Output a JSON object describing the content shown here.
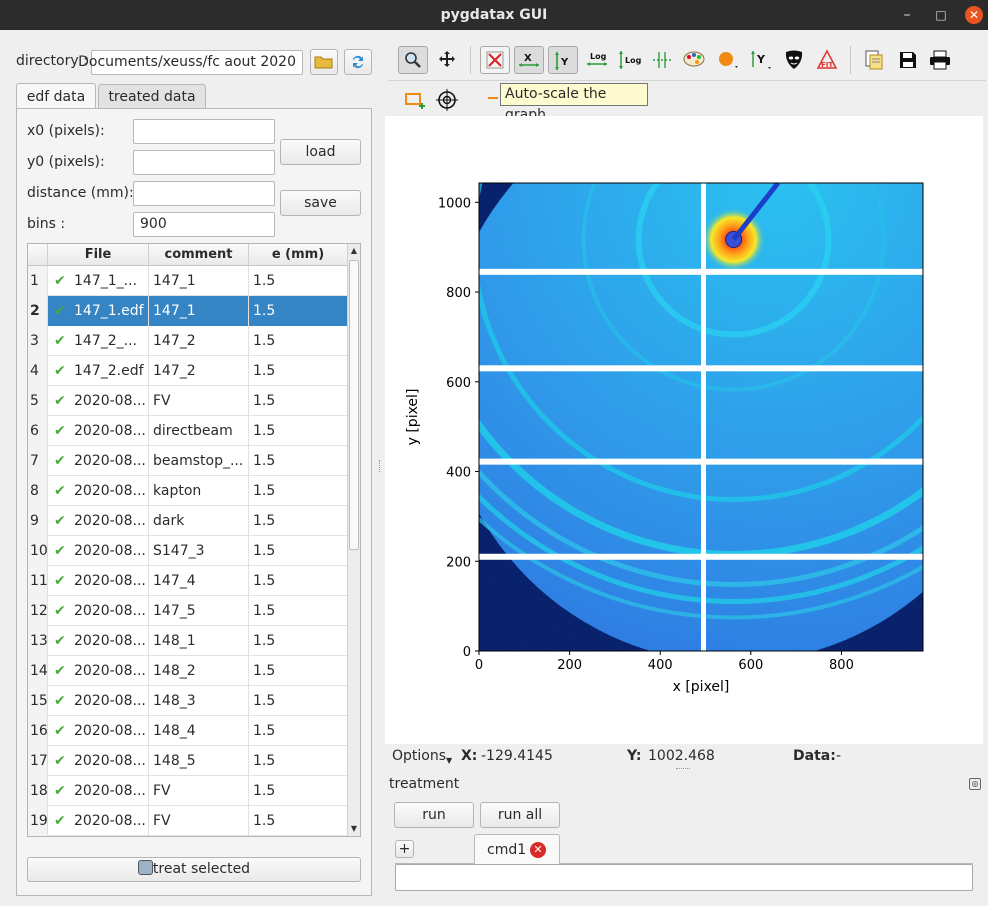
{
  "window": {
    "title": "pygdatax GUI",
    "minimize": "–",
    "maximize": "□",
    "close": "✕"
  },
  "directory": {
    "label": "directory :",
    "value": "Documents/xeuss/fc aout 2020",
    "browse_icon": "folder-icon",
    "refresh_icon": "refresh-icon"
  },
  "tabs": [
    {
      "label": "edf data"
    },
    {
      "label": "treated data"
    }
  ],
  "params": {
    "x0_label": "x0 (pixels):",
    "x0_value": "",
    "y0_label": "y0 (pixels):",
    "y0_value": "",
    "distance_label": "distance (mm):",
    "distance_value": "",
    "bins_label": "bins :",
    "bins_value": "900",
    "load": "load",
    "save": "save"
  },
  "table": {
    "headers": [
      "File",
      "comment",
      "e (mm)"
    ],
    "selected_row": 2,
    "rows": [
      {
        "idx": "1",
        "file": "147_1_...",
        "comment": "147_1",
        "e": "1.5"
      },
      {
        "idx": "2",
        "file": "147_1.edf",
        "comment": "147_1",
        "e": "1.5"
      },
      {
        "idx": "3",
        "file": "147_2_...",
        "comment": "147_2",
        "e": "1.5"
      },
      {
        "idx": "4",
        "file": "147_2.edf",
        "comment": "147_2",
        "e": "1.5"
      },
      {
        "idx": "5",
        "file": "2020-08...",
        "comment": "FV",
        "e": "1.5"
      },
      {
        "idx": "6",
        "file": "2020-08...",
        "comment": "directbeam",
        "e": "1.5"
      },
      {
        "idx": "7",
        "file": "2020-08...",
        "comment": "beamstop_...",
        "e": "1.5"
      },
      {
        "idx": "8",
        "file": "2020-08...",
        "comment": "kapton",
        "e": "1.5"
      },
      {
        "idx": "9",
        "file": "2020-08...",
        "comment": "dark",
        "e": "1.5"
      },
      {
        "idx": "10",
        "file": "2020-08...",
        "comment": "S147_3",
        "e": "1.5"
      },
      {
        "idx": "11",
        "file": "2020-08...",
        "comment": "147_4",
        "e": "1.5"
      },
      {
        "idx": "12",
        "file": "2020-08...",
        "comment": "147_5",
        "e": "1.5"
      },
      {
        "idx": "13",
        "file": "2020-08...",
        "comment": "148_1",
        "e": "1.5"
      },
      {
        "idx": "14",
        "file": "2020-08...",
        "comment": "148_2",
        "e": "1.5"
      },
      {
        "idx": "15",
        "file": "2020-08...",
        "comment": "148_3",
        "e": "1.5"
      },
      {
        "idx": "16",
        "file": "2020-08...",
        "comment": "148_4",
        "e": "1.5"
      },
      {
        "idx": "17",
        "file": "2020-08...",
        "comment": "148_5",
        "e": "1.5"
      },
      {
        "idx": "18",
        "file": "2020-08...",
        "comment": "FV",
        "e": "1.5"
      },
      {
        "idx": "19",
        "file": "2020-08...",
        "comment": "FV",
        "e": "1.5"
      }
    ]
  },
  "treat_selected": "treat selected",
  "toolbar": {
    "tooltip": "Auto-scale the graph",
    "icons": [
      "zoom-icon",
      "pan-icon",
      "reset-zoom-icon",
      "autoscale-x-icon",
      "autoscale-y-icon",
      "log-x-icon",
      "log-y-icon",
      "grid-icon",
      "colormap-icon",
      "curve-style-icon",
      "y-axis-icon",
      "mask-icon",
      "fit-icon",
      "copy-icon",
      "save-icon",
      "print-icon",
      "roi-icon",
      "crosshair-icon"
    ]
  },
  "chart_data": {
    "type": "heatmap",
    "title": "",
    "xlabel": "x [pixel]",
    "ylabel": "y [pixel]",
    "xlim": [
      0,
      980
    ],
    "ylim": [
      0,
      1043
    ],
    "xticks": [
      0,
      200,
      400,
      600,
      800
    ],
    "yticks": [
      0,
      200,
      400,
      600,
      800,
      1000
    ],
    "beam_center": [
      562,
      917
    ],
    "colormap": [
      "#00155e",
      "#2f7df0",
      "#1fbde8",
      "#f6e829",
      "#ff3d12"
    ]
  },
  "status": {
    "options": "Options",
    "x_label": "X:",
    "x_value": "-129.4145",
    "y_label": "Y:",
    "y_value": "1002.468",
    "data_label": "Data:",
    "data_value": "-"
  },
  "treatment": {
    "label": "treatment",
    "run": "run",
    "run_all": "run all",
    "add": "+",
    "tab": "cmd1",
    "command": ""
  }
}
